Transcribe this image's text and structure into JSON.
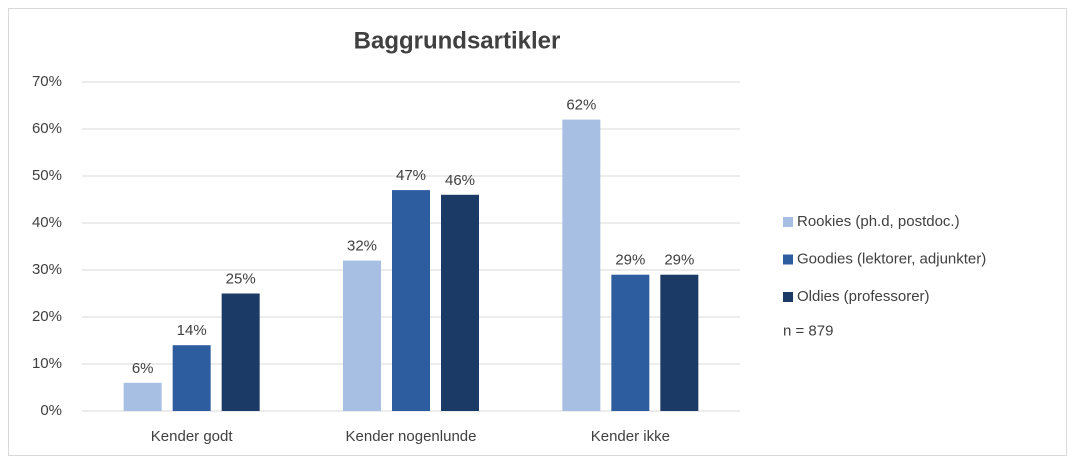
{
  "chart_data": {
    "type": "bar",
    "title": "Baggrundsartikler",
    "categories": [
      "Kender godt",
      "Kender nogenlunde",
      "Kender ikke"
    ],
    "series": [
      {
        "name": "Rookies (ph.d, postdoc.)",
        "color": "#a7bfe2",
        "values": [
          6,
          32,
          62
        ],
        "value_labels": [
          "6%",
          "32%",
          "62%"
        ]
      },
      {
        "name": "Goodies (lektorer, adjunkter)",
        "color": "#2e5d9f",
        "values": [
          14,
          47,
          29
        ],
        "value_labels": [
          "14%",
          "47%",
          "29%"
        ]
      },
      {
        "name": "Oldies (professorer)",
        "color": "#1b3a66",
        "values": [
          25,
          46,
          29
        ],
        "value_labels": [
          "25%",
          "46%",
          "29%"
        ]
      }
    ],
    "ylim": [
      0,
      70
    ],
    "yticks": [
      {
        "value": 0,
        "label": "0%"
      },
      {
        "value": 10,
        "label": "10%"
      },
      {
        "value": 20,
        "label": "20%"
      },
      {
        "value": 30,
        "label": "30%"
      },
      {
        "value": 40,
        "label": "40%"
      },
      {
        "value": 50,
        "label": "50%"
      },
      {
        "value": 60,
        "label": "60%"
      },
      {
        "value": 70,
        "label": "70%"
      }
    ],
    "grid": true,
    "legend": "right",
    "annotation": "n = 879"
  }
}
